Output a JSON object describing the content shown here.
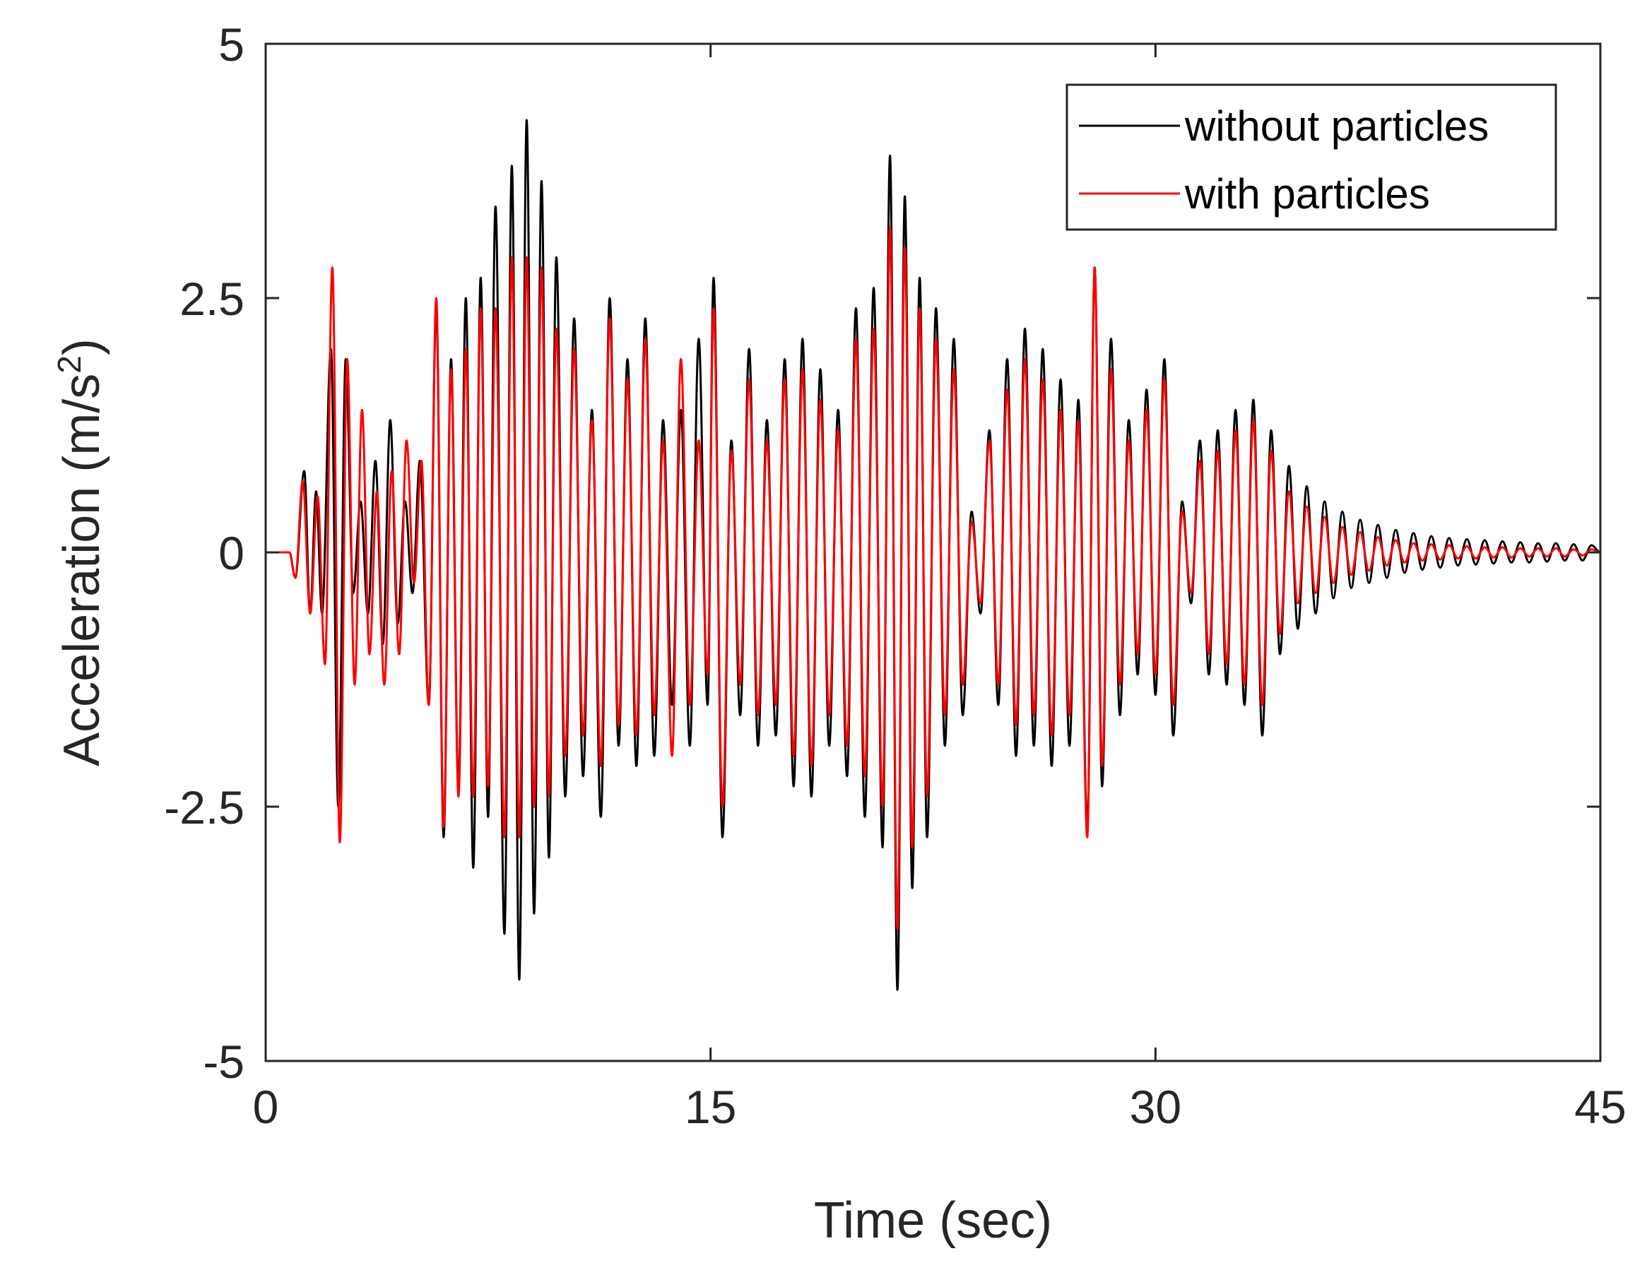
{
  "chart_data": {
    "type": "line",
    "title": "",
    "xlabel": "Time (sec)",
    "ylabel_main": "Acceleration (m/s",
    "ylabel_sup": "2",
    "ylabel_close": ")",
    "xlim": [
      0,
      45
    ],
    "ylim": [
      -5,
      5
    ],
    "xticks": [
      0,
      15,
      30,
      45
    ],
    "xtick_labels": [
      "0",
      "15",
      "30",
      "45"
    ],
    "yticks": [
      -5,
      -2.5,
      0,
      2.5,
      5
    ],
    "ytick_labels": [
      "-5",
      "-2.5",
      "0",
      "2.5",
      "5"
    ],
    "grid": false,
    "legend_position": "top-right",
    "series": [
      {
        "name": "without particles",
        "color": "#000000",
        "peaks": [
          [
            0.0,
            0.0
          ],
          [
            0.8,
            0.0
          ],
          [
            1.0,
            -0.25
          ],
          [
            1.3,
            0.8
          ],
          [
            1.5,
            -0.6
          ],
          [
            1.7,
            0.6
          ],
          [
            1.9,
            -0.6
          ],
          [
            2.2,
            2.0
          ],
          [
            2.45,
            -2.5
          ],
          [
            2.7,
            1.9
          ],
          [
            2.95,
            -0.4
          ],
          [
            3.2,
            0.5
          ],
          [
            3.45,
            -0.6
          ],
          [
            3.7,
            0.9
          ],
          [
            3.95,
            -0.9
          ],
          [
            4.2,
            1.3
          ],
          [
            4.45,
            -0.7
          ],
          [
            4.7,
            0.5
          ],
          [
            4.95,
            -0.4
          ],
          [
            5.2,
            0.9
          ],
          [
            5.5,
            -1.5
          ],
          [
            5.75,
            2.4
          ],
          [
            6.0,
            -2.8
          ],
          [
            6.25,
            1.9
          ],
          [
            6.5,
            -2.3
          ],
          [
            6.75,
            2.5
          ],
          [
            7.0,
            -3.1
          ],
          [
            7.25,
            2.7
          ],
          [
            7.5,
            -2.6
          ],
          [
            7.75,
            3.4
          ],
          [
            8.05,
            -3.75
          ],
          [
            8.3,
            3.8
          ],
          [
            8.55,
            -4.2
          ],
          [
            8.8,
            4.25
          ],
          [
            9.05,
            -3.55
          ],
          [
            9.3,
            3.65
          ],
          [
            9.55,
            -3.0
          ],
          [
            9.8,
            2.9
          ],
          [
            10.1,
            -2.4
          ],
          [
            10.4,
            2.3
          ],
          [
            10.7,
            -2.2
          ],
          [
            11.0,
            1.4
          ],
          [
            11.3,
            -2.6
          ],
          [
            11.6,
            2.5
          ],
          [
            11.9,
            -1.9
          ],
          [
            12.2,
            1.9
          ],
          [
            12.5,
            -2.1
          ],
          [
            12.8,
            2.3
          ],
          [
            13.1,
            -2.0
          ],
          [
            13.4,
            1.3
          ],
          [
            13.7,
            -1.5
          ],
          [
            14.0,
            1.4
          ],
          [
            14.3,
            -1.9
          ],
          [
            14.6,
            2.1
          ],
          [
            14.9,
            -1.5
          ],
          [
            15.1,
            2.7
          ],
          [
            15.4,
            -2.8
          ],
          [
            15.7,
            1.1
          ],
          [
            16.0,
            -1.6
          ],
          [
            16.3,
            2.0
          ],
          [
            16.6,
            -1.9
          ],
          [
            16.9,
            1.3
          ],
          [
            17.2,
            -1.8
          ],
          [
            17.5,
            1.9
          ],
          [
            17.8,
            -2.3
          ],
          [
            18.1,
            2.1
          ],
          [
            18.4,
            -2.4
          ],
          [
            18.7,
            1.8
          ],
          [
            19.0,
            -1.9
          ],
          [
            19.3,
            1.4
          ],
          [
            19.6,
            -2.2
          ],
          [
            19.9,
            2.4
          ],
          [
            20.2,
            -2.6
          ],
          [
            20.5,
            2.6
          ],
          [
            20.8,
            -2.9
          ],
          [
            21.05,
            3.9
          ],
          [
            21.3,
            -4.3
          ],
          [
            21.55,
            3.5
          ],
          [
            21.8,
            -3.3
          ],
          [
            22.05,
            2.7
          ],
          [
            22.3,
            -2.8
          ],
          [
            22.6,
            2.4
          ],
          [
            22.9,
            -1.9
          ],
          [
            23.2,
            2.1
          ],
          [
            23.5,
            -1.6
          ],
          [
            23.8,
            0.4
          ],
          [
            24.1,
            -0.6
          ],
          [
            24.4,
            1.2
          ],
          [
            24.7,
            -1.5
          ],
          [
            25.0,
            1.9
          ],
          [
            25.3,
            -2.0
          ],
          [
            25.6,
            2.2
          ],
          [
            25.9,
            -1.9
          ],
          [
            26.2,
            2.0
          ],
          [
            26.5,
            -2.1
          ],
          [
            26.8,
            1.7
          ],
          [
            27.1,
            -1.9
          ],
          [
            27.4,
            1.5
          ],
          [
            27.7,
            -2.7
          ],
          [
            27.95,
            2.8
          ],
          [
            28.2,
            -2.3
          ],
          [
            28.5,
            2.1
          ],
          [
            28.8,
            -1.6
          ],
          [
            29.1,
            1.3
          ],
          [
            29.4,
            -1.2
          ],
          [
            29.7,
            1.6
          ],
          [
            30.0,
            -1.4
          ],
          [
            30.3,
            1.9
          ],
          [
            30.6,
            -1.8
          ],
          [
            30.9,
            0.5
          ],
          [
            31.2,
            -0.5
          ],
          [
            31.5,
            1.1
          ],
          [
            31.8,
            -1.2
          ],
          [
            32.1,
            1.2
          ],
          [
            32.4,
            -1.3
          ],
          [
            32.7,
            1.4
          ],
          [
            33.0,
            -1.5
          ],
          [
            33.3,
            1.5
          ],
          [
            33.6,
            -1.8
          ],
          [
            33.9,
            1.2
          ],
          [
            34.2,
            -1.0
          ],
          [
            34.5,
            0.85
          ],
          [
            34.8,
            -0.75
          ],
          [
            35.1,
            0.65
          ],
          [
            35.4,
            -0.6
          ],
          [
            35.7,
            0.5
          ],
          [
            36.0,
            -0.45
          ],
          [
            36.3,
            0.4
          ],
          [
            36.6,
            -0.35
          ],
          [
            36.9,
            0.32
          ],
          [
            37.2,
            -0.3
          ],
          [
            37.5,
            0.27
          ],
          [
            37.8,
            -0.25
          ],
          [
            38.1,
            0.22
          ],
          [
            38.4,
            -0.2
          ],
          [
            38.7,
            0.19
          ],
          [
            39.0,
            -0.17
          ],
          [
            39.3,
            0.16
          ],
          [
            39.6,
            -0.15
          ],
          [
            39.9,
            0.14
          ],
          [
            40.2,
            -0.13
          ],
          [
            40.5,
            0.13
          ],
          [
            40.8,
            -0.12
          ],
          [
            41.1,
            0.12
          ],
          [
            41.4,
            -0.11
          ],
          [
            41.7,
            0.11
          ],
          [
            42.0,
            -0.1
          ],
          [
            42.3,
            0.1
          ],
          [
            42.6,
            -0.1
          ],
          [
            42.9,
            0.09
          ],
          [
            43.2,
            -0.09
          ],
          [
            43.5,
            0.09
          ],
          [
            43.8,
            -0.08
          ],
          [
            44.1,
            0.08
          ],
          [
            44.4,
            -0.08
          ],
          [
            44.7,
            0.07
          ],
          [
            45.0,
            0.0
          ]
        ]
      },
      {
        "name": "with particles",
        "color": "#ff0000",
        "peaks": [
          [
            0.0,
            0.0
          ],
          [
            0.8,
            0.0
          ],
          [
            1.0,
            -0.25
          ],
          [
            1.25,
            0.7
          ],
          [
            1.5,
            -0.6
          ],
          [
            1.75,
            0.55
          ],
          [
            2.0,
            -1.1
          ],
          [
            2.25,
            2.8
          ],
          [
            2.5,
            -2.85
          ],
          [
            2.75,
            1.9
          ],
          [
            3.0,
            -1.3
          ],
          [
            3.25,
            1.4
          ],
          [
            3.5,
            -1.0
          ],
          [
            3.75,
            0.6
          ],
          [
            4.0,
            -1.3
          ],
          [
            4.25,
            0.8
          ],
          [
            4.5,
            -1.0
          ],
          [
            4.75,
            1.1
          ],
          [
            5.0,
            -0.3
          ],
          [
            5.25,
            0.9
          ],
          [
            5.5,
            -1.5
          ],
          [
            5.75,
            2.5
          ],
          [
            6.0,
            -2.7
          ],
          [
            6.25,
            1.8
          ],
          [
            6.5,
            -2.4
          ],
          [
            6.75,
            2.0
          ],
          [
            7.0,
            -2.4
          ],
          [
            7.25,
            2.4
          ],
          [
            7.5,
            -2.3
          ],
          [
            7.75,
            2.4
          ],
          [
            8.05,
            -2.8
          ],
          [
            8.3,
            2.9
          ],
          [
            8.55,
            -2.8
          ],
          [
            8.8,
            2.9
          ],
          [
            9.05,
            -2.5
          ],
          [
            9.3,
            2.8
          ],
          [
            9.55,
            -2.4
          ],
          [
            9.8,
            2.2
          ],
          [
            10.1,
            -2.0
          ],
          [
            10.4,
            2.0
          ],
          [
            10.7,
            -1.8
          ],
          [
            11.0,
            1.3
          ],
          [
            11.3,
            -2.1
          ],
          [
            11.6,
            2.3
          ],
          [
            11.9,
            -1.7
          ],
          [
            12.2,
            1.7
          ],
          [
            12.5,
            -1.8
          ],
          [
            12.8,
            2.1
          ],
          [
            13.1,
            -1.6
          ],
          [
            13.4,
            1.1
          ],
          [
            13.7,
            -2.0
          ],
          [
            14.0,
            1.9
          ],
          [
            14.3,
            -1.5
          ],
          [
            14.6,
            1.1
          ],
          [
            14.9,
            -1.2
          ],
          [
            15.1,
            2.4
          ],
          [
            15.4,
            -2.5
          ],
          [
            15.7,
            1.0
          ],
          [
            16.0,
            -1.3
          ],
          [
            16.3,
            1.7
          ],
          [
            16.6,
            -1.6
          ],
          [
            16.9,
            1.1
          ],
          [
            17.2,
            -1.5
          ],
          [
            17.5,
            1.7
          ],
          [
            17.8,
            -2.0
          ],
          [
            18.1,
            1.8
          ],
          [
            18.4,
            -2.1
          ],
          [
            18.7,
            1.5
          ],
          [
            19.0,
            -1.6
          ],
          [
            19.3,
            1.2
          ],
          [
            19.6,
            -1.9
          ],
          [
            19.9,
            2.1
          ],
          [
            20.2,
            -2.2
          ],
          [
            20.5,
            2.2
          ],
          [
            20.8,
            -2.5
          ],
          [
            21.05,
            3.2
          ],
          [
            21.3,
            -3.7
          ],
          [
            21.55,
            3.0
          ],
          [
            21.8,
            -2.9
          ],
          [
            22.05,
            2.4
          ],
          [
            22.3,
            -2.4
          ],
          [
            22.6,
            2.1
          ],
          [
            22.9,
            -1.6
          ],
          [
            23.2,
            1.8
          ],
          [
            23.5,
            -1.3
          ],
          [
            23.8,
            0.3
          ],
          [
            24.1,
            -0.5
          ],
          [
            24.4,
            1.1
          ],
          [
            24.7,
            -1.3
          ],
          [
            25.0,
            1.6
          ],
          [
            25.3,
            -1.7
          ],
          [
            25.6,
            1.9
          ],
          [
            25.9,
            -1.6
          ],
          [
            26.2,
            1.7
          ],
          [
            26.5,
            -1.8
          ],
          [
            26.8,
            1.4
          ],
          [
            27.1,
            -1.6
          ],
          [
            27.4,
            1.3
          ],
          [
            27.7,
            -2.8
          ],
          [
            27.95,
            2.8
          ],
          [
            28.2,
            -2.1
          ],
          [
            28.5,
            1.8
          ],
          [
            28.8,
            -1.3
          ],
          [
            29.1,
            1.1
          ],
          [
            29.4,
            -1.0
          ],
          [
            29.7,
            1.4
          ],
          [
            30.0,
            -1.2
          ],
          [
            30.3,
            1.7
          ],
          [
            30.6,
            -1.5
          ],
          [
            30.9,
            0.4
          ],
          [
            31.2,
            -0.4
          ],
          [
            31.5,
            0.9
          ],
          [
            31.8,
            -1.0
          ],
          [
            32.1,
            1.0
          ],
          [
            32.4,
            -1.1
          ],
          [
            32.7,
            1.2
          ],
          [
            33.0,
            -1.3
          ],
          [
            33.3,
            1.3
          ],
          [
            33.6,
            -1.5
          ],
          [
            33.9,
            1.0
          ],
          [
            34.2,
            -0.8
          ],
          [
            34.5,
            0.6
          ],
          [
            34.8,
            -0.5
          ],
          [
            35.1,
            0.45
          ],
          [
            35.4,
            -0.4
          ],
          [
            35.7,
            0.35
          ],
          [
            36.0,
            -0.3
          ],
          [
            36.3,
            0.25
          ],
          [
            36.6,
            -0.22
          ],
          [
            36.9,
            0.2
          ],
          [
            37.2,
            -0.18
          ],
          [
            37.5,
            0.15
          ],
          [
            37.8,
            -0.13
          ],
          [
            38.1,
            0.12
          ],
          [
            38.4,
            -0.1
          ],
          [
            38.7,
            0.09
          ],
          [
            39.0,
            -0.08
          ],
          [
            39.3,
            0.08
          ],
          [
            39.6,
            -0.07
          ],
          [
            39.9,
            0.07
          ],
          [
            40.2,
            -0.06
          ],
          [
            40.5,
            0.06
          ],
          [
            40.8,
            -0.06
          ],
          [
            41.1,
            0.05
          ],
          [
            41.4,
            -0.05
          ],
          [
            41.7,
            0.05
          ],
          [
            42.0,
            -0.05
          ],
          [
            42.3,
            0.04
          ],
          [
            42.6,
            -0.04
          ],
          [
            42.9,
            0.04
          ],
          [
            43.2,
            -0.04
          ],
          [
            43.5,
            0.04
          ],
          [
            43.8,
            -0.04
          ],
          [
            44.1,
            0.03
          ],
          [
            44.4,
            -0.03
          ],
          [
            44.7,
            0.03
          ],
          [
            45.0,
            0.0
          ]
        ]
      }
    ]
  }
}
